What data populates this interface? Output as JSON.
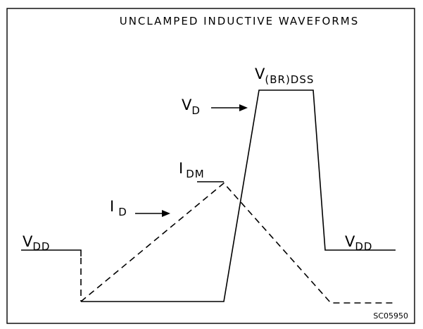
{
  "title": "UNCLAMPED INDUCTIVE WAVEFORMS",
  "labels": {
    "vdd_left": {
      "main": "V",
      "sub": "DD"
    },
    "vbr": {
      "main": "V",
      "sub": "(BR)DSS"
    },
    "vd": {
      "main": "V",
      "sub": "D"
    },
    "idm": {
      "main": "I",
      "sub": "DM"
    },
    "id": {
      "main": "I",
      "sub": "D"
    },
    "vdd_right": {
      "main": "V",
      "sub": "DD"
    }
  },
  "figure_code": "SC05950"
}
